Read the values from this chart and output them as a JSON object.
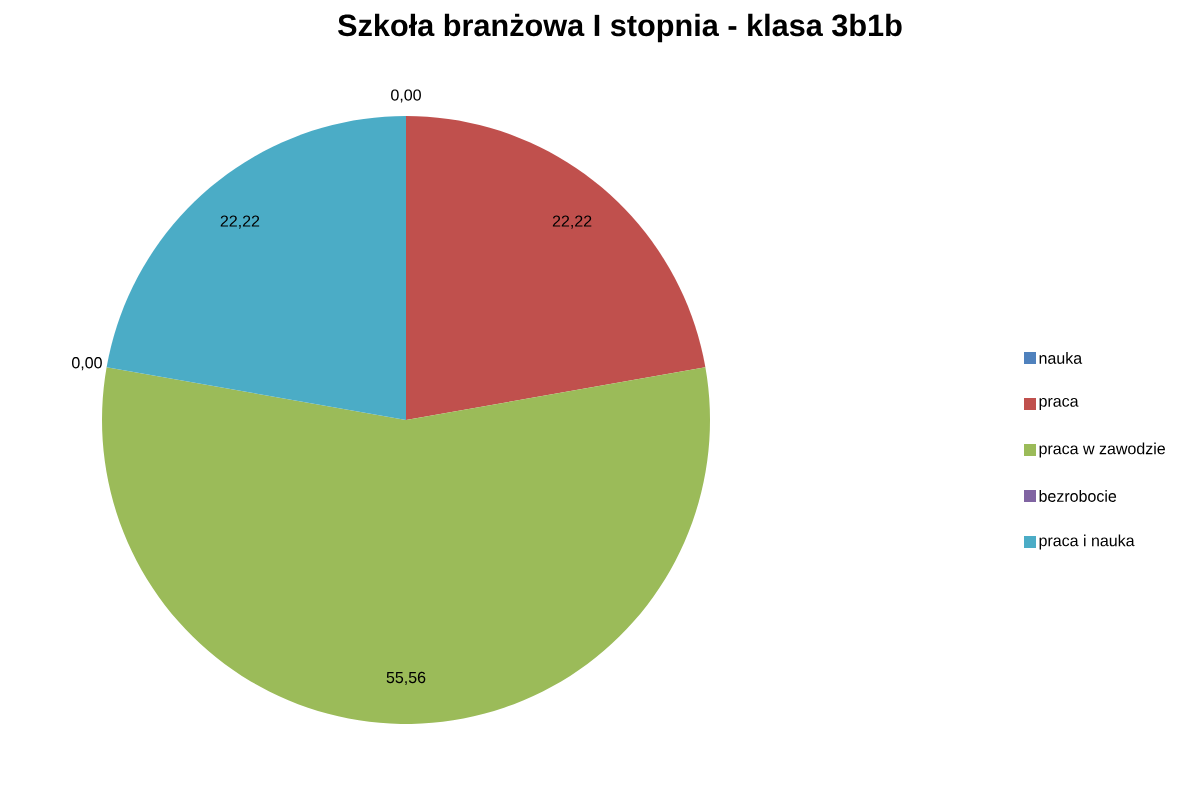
{
  "chart_data": {
    "type": "pie",
    "title": "Szkoła branżowa I stopnia - klasa 3b1b",
    "categories": [
      "nauka",
      "praca",
      "praca w zawodzie",
      "bezrobocie",
      "praca i nauka"
    ],
    "values": [
      0,
      22.22,
      55.56,
      0,
      22.22
    ],
    "value_labels": [
      "0,00",
      "22,22",
      "55,56",
      "0,00",
      "22,22"
    ],
    "colors": [
      "#4f81bd",
      "#c0504d",
      "#9bbb59",
      "#8064a2",
      "#4bacc6"
    ],
    "legend": "right"
  }
}
